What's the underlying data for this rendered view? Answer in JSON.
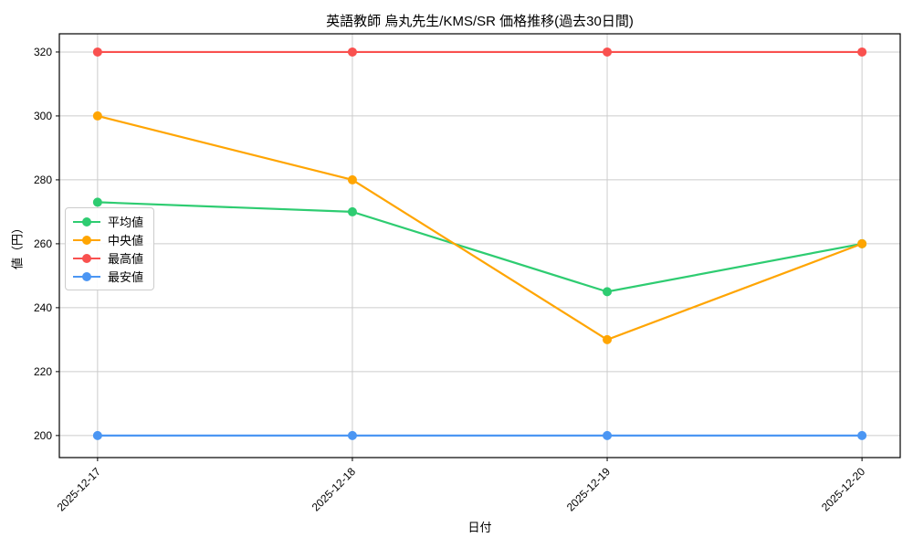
{
  "chart_data": {
    "type": "line",
    "title": "英語教師 烏丸先生/KMS/SR 価格推移(過去30日間)",
    "xlabel": "日付",
    "ylabel": "値（円）",
    "categories": [
      "2025-12-17",
      "2025-12-18",
      "2025-12-19",
      "2025-12-20"
    ],
    "series": [
      {
        "name": "平均値",
        "color": "#2ecc71",
        "values": [
          273,
          270,
          245,
          260
        ]
      },
      {
        "name": "中央値",
        "color": "#ffa502",
        "values": [
          300,
          280,
          230,
          260
        ]
      },
      {
        "name": "最高値",
        "color": "#f9514f",
        "values": [
          320,
          320,
          320,
          320
        ]
      },
      {
        "name": "最安値",
        "color": "#4b96f3",
        "values": [
          200,
          200,
          200,
          200
        ]
      }
    ],
    "yticks": [
      200,
      220,
      240,
      260,
      280,
      300,
      320
    ],
    "ylim": [
      193.1,
      325.7
    ],
    "grid": true,
    "grid_color": "#cccccc",
    "legend_position": "center left",
    "x_tick_rotation": -45
  }
}
